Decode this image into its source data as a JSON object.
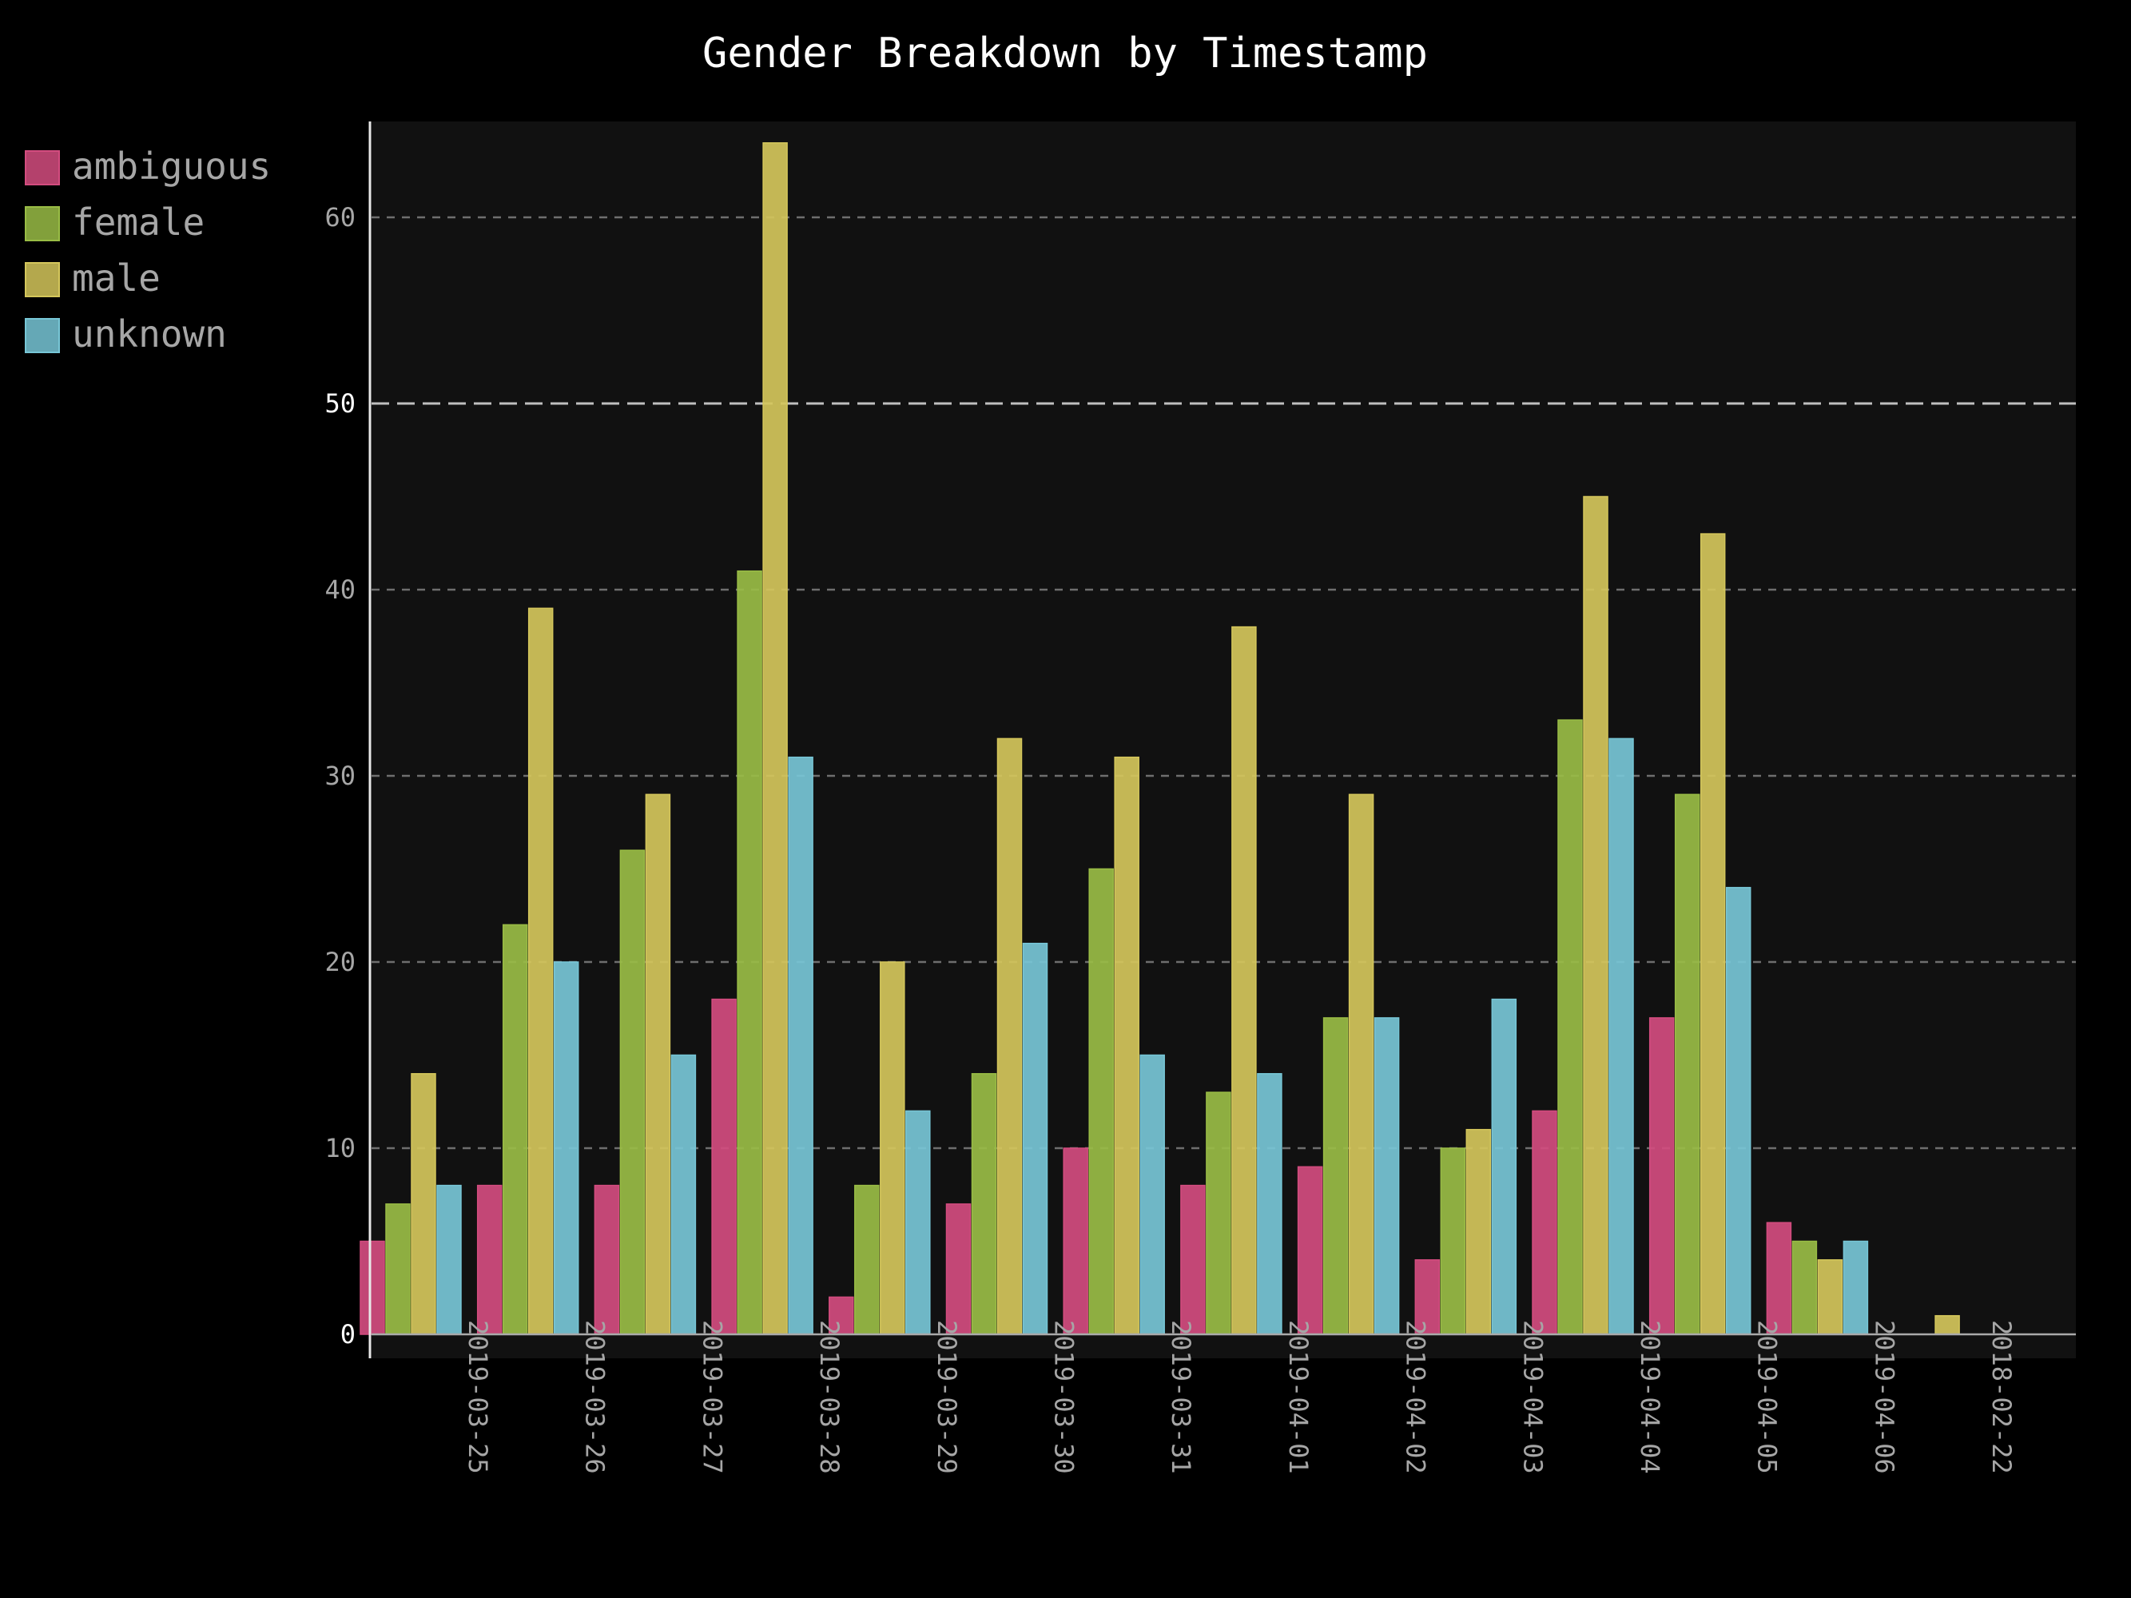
{
  "chart_data": {
    "type": "bar",
    "title": "Gender Breakdown by Timestamp",
    "xlabel": "",
    "ylabel": "",
    "categories": [
      "2019-03-25",
      "2019-03-26",
      "2019-03-27",
      "2019-03-28",
      "2019-03-29",
      "2019-03-30",
      "2019-03-31",
      "2019-04-01",
      "2019-04-02",
      "2019-04-03",
      "2019-04-04",
      "2019-04-05",
      "2019-04-06",
      "2018-02-22"
    ],
    "series": [
      {
        "name": "ambiguous",
        "color": "#d34c7f",
        "values": [
          5,
          8,
          8,
          18,
          2,
          7,
          10,
          8,
          9,
          4,
          12,
          17,
          6,
          0
        ]
      },
      {
        "name": "female",
        "color": "#99bc45",
        "values": [
          7,
          22,
          26,
          41,
          8,
          14,
          25,
          13,
          17,
          10,
          33,
          29,
          5,
          0
        ]
      },
      {
        "name": "male",
        "color": "#d4c65b",
        "values": [
          14,
          39,
          29,
          64,
          20,
          32,
          31,
          38,
          29,
          11,
          45,
          43,
          4,
          1
        ]
      },
      {
        "name": "unknown",
        "color": "#77c6d6",
        "values": [
          8,
          20,
          15,
          31,
          12,
          21,
          15,
          14,
          17,
          18,
          32,
          24,
          5,
          0
        ]
      }
    ],
    "ylim": [
      0,
      65
    ],
    "yticks": [
      0,
      10,
      20,
      30,
      40,
      50,
      60
    ],
    "grid": true,
    "legend_position": "top-left",
    "colors": {
      "background": "#000000",
      "plot_background": "#111111",
      "grid": "#6e6e6e",
      "axis": "#e8e8e8"
    }
  }
}
